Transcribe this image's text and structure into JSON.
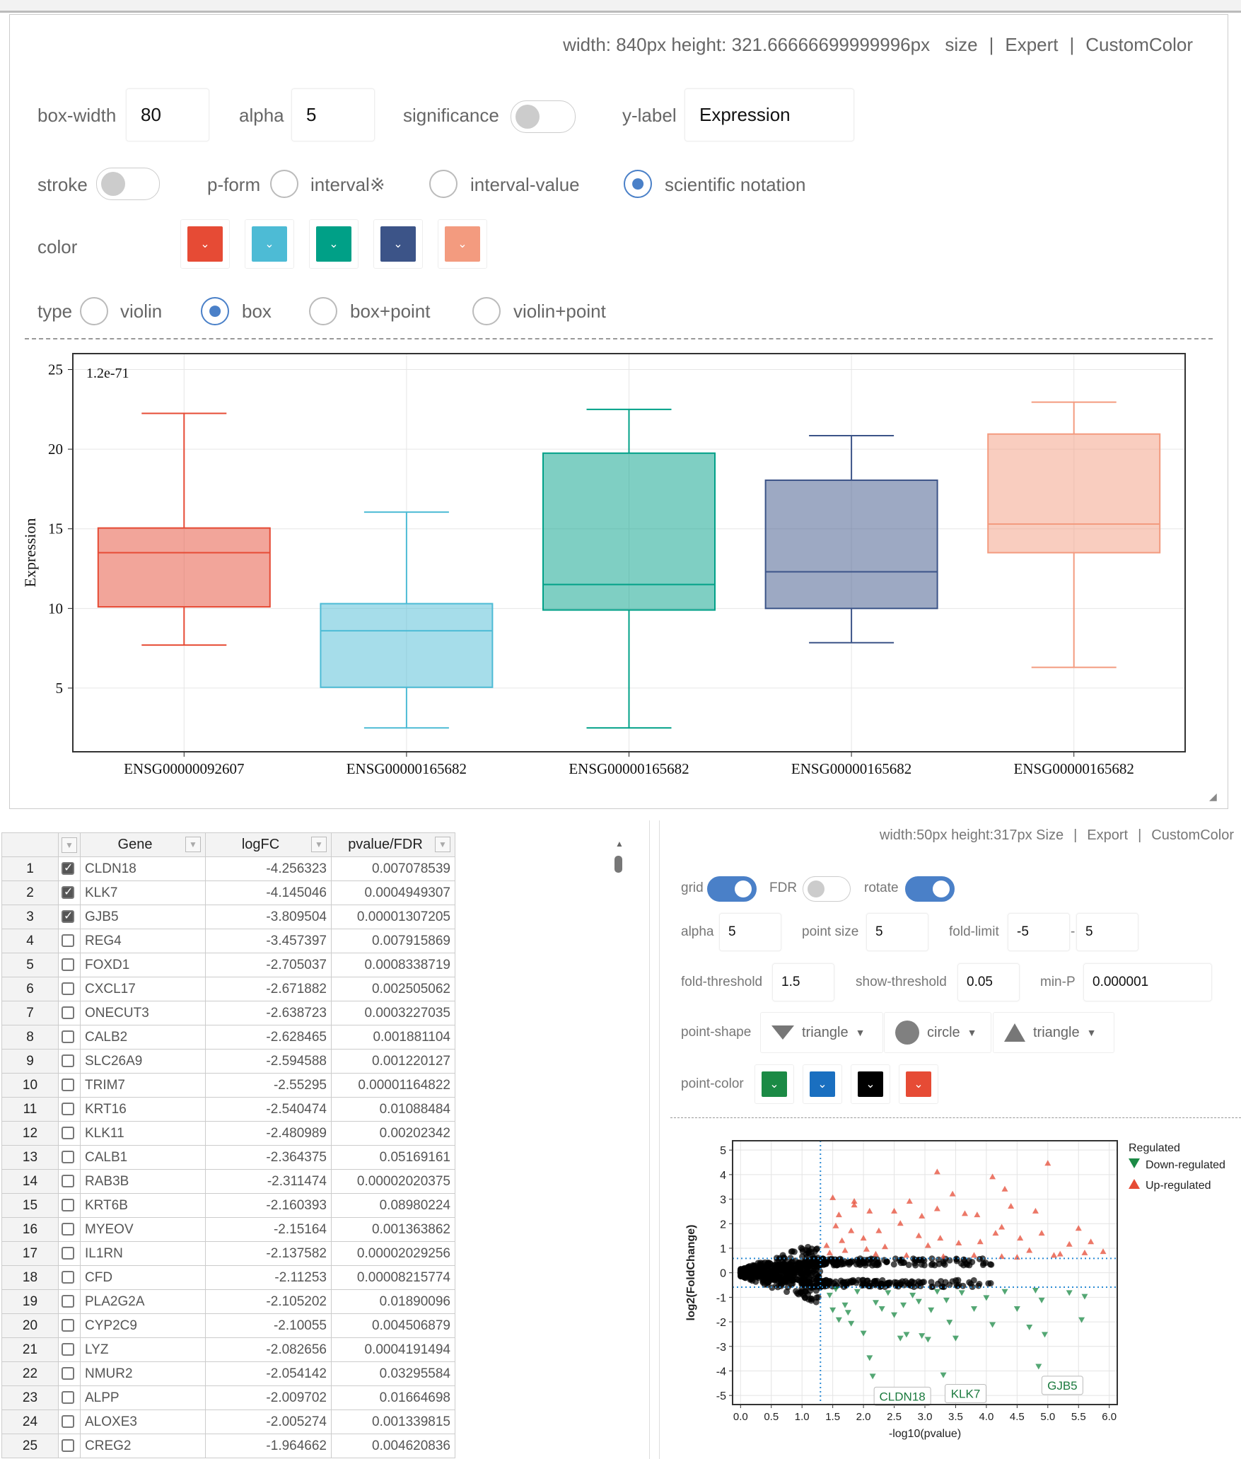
{
  "box_panel": {
    "size_text": "width: 840px height: 321.66666699999996px",
    "links": [
      "size",
      "Expert",
      "CustomColor"
    ],
    "box_width": {
      "label": "box-width",
      "value": "80"
    },
    "alpha": {
      "label": "alpha",
      "value": "5"
    },
    "significance": {
      "label": "significance",
      "on": false
    },
    "y_label": {
      "label": "y-label",
      "value": "Expression"
    },
    "stroke": {
      "label": "stroke",
      "on": false
    },
    "p_form": {
      "label": "p-form",
      "options": [
        "interval※",
        "interval-value",
        "scientific notation"
      ],
      "selected": "scientific notation"
    },
    "color": {
      "label": "color",
      "colors": [
        "#e64b35",
        "#4dbbd5",
        "#00a087",
        "#3c5488",
        "#f39b7f"
      ]
    },
    "type": {
      "label": "type",
      "options": [
        "violin",
        "box",
        "box+point",
        "violin+point"
      ],
      "selected": "box"
    }
  },
  "table": {
    "headers": [
      "Gene",
      "logFC",
      "pvalue/FDR"
    ],
    "rows": [
      {
        "n": "1",
        "checked": true,
        "gene": "CLDN18",
        "logfc": "-4.256323",
        "p": "0.007078539"
      },
      {
        "n": "2",
        "checked": true,
        "gene": "KLK7",
        "logfc": "-4.145046",
        "p": "0.0004949307"
      },
      {
        "n": "3",
        "checked": true,
        "gene": "GJB5",
        "logfc": "-3.809504",
        "p": "0.00001307205"
      },
      {
        "n": "4",
        "checked": false,
        "gene": "REG4",
        "logfc": "-3.457397",
        "p": "0.007915869"
      },
      {
        "n": "5",
        "checked": false,
        "gene": "FOXD1",
        "logfc": "-2.705037",
        "p": "0.0008338719"
      },
      {
        "n": "6",
        "checked": false,
        "gene": "CXCL17",
        "logfc": "-2.671882",
        "p": "0.002505062"
      },
      {
        "n": "7",
        "checked": false,
        "gene": "ONECUT3",
        "logfc": "-2.638723",
        "p": "0.0003227035"
      },
      {
        "n": "8",
        "checked": false,
        "gene": "CALB2",
        "logfc": "-2.628465",
        "p": "0.001881104"
      },
      {
        "n": "9",
        "checked": false,
        "gene": "SLC26A9",
        "logfc": "-2.594588",
        "p": "0.001220127"
      },
      {
        "n": "10",
        "checked": false,
        "gene": "TRIM7",
        "logfc": "-2.55295",
        "p": "0.00001164822"
      },
      {
        "n": "11",
        "checked": false,
        "gene": "KRT16",
        "logfc": "-2.540474",
        "p": "0.01088484"
      },
      {
        "n": "12",
        "checked": false,
        "gene": "KLK11",
        "logfc": "-2.480989",
        "p": "0.00202342"
      },
      {
        "n": "13",
        "checked": false,
        "gene": "CALB1",
        "logfc": "-2.364375",
        "p": "0.05169161"
      },
      {
        "n": "14",
        "checked": false,
        "gene": "RAB3B",
        "logfc": "-2.311474",
        "p": "0.00002020375"
      },
      {
        "n": "15",
        "checked": false,
        "gene": "KRT6B",
        "logfc": "-2.160393",
        "p": "0.08980224"
      },
      {
        "n": "16",
        "checked": false,
        "gene": "MYEOV",
        "logfc": "-2.15164",
        "p": "0.001363862"
      },
      {
        "n": "17",
        "checked": false,
        "gene": "IL1RN",
        "logfc": "-2.137582",
        "p": "0.00002029256"
      },
      {
        "n": "18",
        "checked": false,
        "gene": "CFD",
        "logfc": "-2.11253",
        "p": "0.00008215774"
      },
      {
        "n": "19",
        "checked": false,
        "gene": "PLA2G2A",
        "logfc": "-2.105202",
        "p": "0.01890096"
      },
      {
        "n": "20",
        "checked": false,
        "gene": "CYP2C9",
        "logfc": "-2.10055",
        "p": "0.004506879"
      },
      {
        "n": "21",
        "checked": false,
        "gene": "LYZ",
        "logfc": "-2.082656",
        "p": "0.0004191494"
      },
      {
        "n": "22",
        "checked": false,
        "gene": "NMUR2",
        "logfc": "-2.054142",
        "p": "0.03295584"
      },
      {
        "n": "23",
        "checked": false,
        "gene": "ALPP",
        "logfc": "-2.009702",
        "p": "0.01664698"
      },
      {
        "n": "24",
        "checked": false,
        "gene": "ALOXE3",
        "logfc": "-2.005274",
        "p": "0.001339815"
      },
      {
        "n": "25",
        "checked": false,
        "gene": "CREG2",
        "logfc": "-1.964662",
        "p": "0.004620836"
      }
    ]
  },
  "volcano_panel": {
    "size_text": "width:50px height:317px",
    "links": [
      "Size",
      "Export",
      "CustomColor"
    ],
    "grid": {
      "label": "grid",
      "on": true
    },
    "fdr": {
      "label": "FDR",
      "on": false
    },
    "rotate": {
      "label": "rotate",
      "on": true
    },
    "alpha": {
      "label": "alpha",
      "value": "5"
    },
    "point_size": {
      "label": "point size",
      "value": "5"
    },
    "fold_limit": {
      "label": "fold-limit",
      "min": "-5",
      "sep": "-",
      "max": "5"
    },
    "fold_threshold": {
      "label": "fold-threshold",
      "value": "1.5"
    },
    "show_threshold": {
      "label": "show-threshold",
      "value": "0.05"
    },
    "min_p": {
      "label": "min-P",
      "value": "0.000001"
    },
    "point_shape": {
      "label": "point-shape",
      "options": [
        {
          "icon": "triangle-down-icon",
          "text": "triangle"
        },
        {
          "icon": "circle-icon",
          "text": "circle"
        },
        {
          "icon": "triangle-up-icon",
          "text": "triangle"
        }
      ]
    },
    "point_color": {
      "label": "point-color",
      "colors": [
        "#1b8a45",
        "#1a6fc0",
        "#000000",
        "#e64b35"
      ]
    }
  },
  "chart_data": [
    {
      "type": "box",
      "ylabel": "Expression",
      "ylim": [
        1,
        26
      ],
      "yticks": [
        5,
        10,
        15,
        20,
        25
      ],
      "annotation": "1.2e-71",
      "grid": true,
      "categories": [
        "ENSG00000092607",
        "ENSG00000165682",
        "ENSG00000165682",
        "ENSG00000165682",
        "ENSG00000165682"
      ],
      "colors": [
        "#e64b35",
        "#4dbbd5",
        "#00a087",
        "#3c5488",
        "#f39b7f"
      ],
      "boxes": [
        {
          "min": 7.7,
          "q1": 10.1,
          "median": 13.5,
          "q3": 15.05,
          "max": 22.25
        },
        {
          "min": 2.5,
          "q1": 5.05,
          "median": 8.6,
          "q3": 10.3,
          "max": 16.05
        },
        {
          "min": 2.5,
          "q1": 9.9,
          "median": 11.5,
          "q3": 19.75,
          "max": 22.5
        },
        {
          "min": 7.85,
          "q1": 10.0,
          "median": 12.3,
          "q3": 18.05,
          "max": 20.85
        },
        {
          "min": 6.3,
          "q1": 13.5,
          "median": 15.3,
          "q3": 20.95,
          "max": 22.95
        }
      ]
    },
    {
      "type": "scatter",
      "xlabel": "-log10(pvalue)",
      "ylabel": "log2(FoldChange)",
      "xlim": [
        -0.13,
        6.13
      ],
      "ylim": [
        -5.37,
        5.38
      ],
      "xticks": [
        "0.0",
        "0.5",
        "1.0",
        "1.5",
        "2.0",
        "2.5",
        "3.0",
        "3.5",
        "4.0",
        "4.5",
        "5.0",
        "5.5",
        "6.0"
      ],
      "yticks": [
        -5,
        -4,
        -3,
        -2,
        -1,
        0,
        1,
        2,
        3,
        4,
        5
      ],
      "grid": true,
      "thresholds": {
        "x": 1.3,
        "y": [
          -0.585,
          0.585
        ]
      },
      "legend": {
        "title": "Regulated",
        "position": "right",
        "entries": [
          {
            "name": "Down-regulated",
            "color": "#1b8a45",
            "shape": "triangle-down"
          },
          {
            "name": "Up-regulated",
            "color": "#e64b35",
            "shape": "triangle-up"
          }
        ]
      },
      "series": [
        {
          "name": "Up-regulated",
          "color": "#e64b35",
          "points": [
            [
              1.5,
              3.05
            ],
            [
              1.85,
              2.9
            ],
            [
              1.85,
              2.75
            ],
            [
              2.1,
              2.5
            ],
            [
              2.5,
              2.5
            ],
            [
              2.75,
              2.9
            ],
            [
              2.95,
              2.3
            ],
            [
              3.2,
              4.1
            ],
            [
              3.2,
              2.6
            ],
            [
              3.45,
              3.2
            ],
            [
              3.65,
              2.4
            ],
            [
              3.85,
              2.35
            ],
            [
              4.1,
              3.9
            ],
            [
              4.3,
              3.4
            ],
            [
              4.4,
              2.7
            ],
            [
              4.8,
              2.5
            ],
            [
              5.0,
              4.45
            ],
            [
              5.5,
              1.8
            ],
            [
              5.7,
              1.25
            ],
            [
              5.9,
              0.85
            ],
            [
              1.6,
              2.35
            ],
            [
              1.55,
              1.9
            ],
            [
              1.8,
              1.7
            ],
            [
              2.0,
              1.4
            ],
            [
              2.25,
              1.7
            ],
            [
              2.6,
              2.0
            ],
            [
              2.9,
              1.5
            ],
            [
              3.05,
              1.1
            ],
            [
              3.25,
              1.4
            ],
            [
              3.55,
              1.2
            ],
            [
              3.9,
              1.25
            ],
            [
              4.15,
              1.6
            ],
            [
              4.25,
              1.85
            ],
            [
              4.55,
              1.4
            ],
            [
              4.7,
              0.9
            ],
            [
              4.9,
              1.6
            ],
            [
              5.35,
              1.15
            ],
            [
              5.2,
              0.75
            ],
            [
              5.6,
              0.8
            ],
            [
              1.4,
              1.1
            ],
            [
              1.45,
              0.8
            ],
            [
              1.7,
              0.9
            ],
            [
              2.2,
              0.75
            ],
            [
              2.7,
              0.7
            ],
            [
              3.3,
              0.65
            ],
            [
              3.8,
              0.7
            ],
            [
              4.25,
              0.65
            ],
            [
              4.5,
              0.62
            ],
            [
              5.1,
              0.7
            ],
            [
              1.65,
              1.3
            ],
            [
              2.35,
              1.05
            ],
            [
              2.05,
              0.95
            ]
          ]
        },
        {
          "name": "Down-regulated",
          "color": "#1b8a45",
          "points": [
            [
              2.1,
              -3.45
            ],
            [
              2.15,
              -4.2
            ],
            [
              3.3,
              -4.15
            ],
            [
              4.85,
              -3.8
            ],
            [
              1.5,
              -1.5
            ],
            [
              1.6,
              -1.9
            ],
            [
              1.8,
              -2.05
            ],
            [
              2.0,
              -2.45
            ],
            [
              2.6,
              -2.65
            ],
            [
              2.7,
              -2.5
            ],
            [
              2.95,
              -2.55
            ],
            [
              3.05,
              -2.7
            ],
            [
              3.5,
              -2.65
            ],
            [
              3.4,
              -2.0
            ],
            [
              4.1,
              -2.1
            ],
            [
              4.7,
              -2.2
            ],
            [
              4.95,
              -2.5
            ],
            [
              5.55,
              -1.9
            ],
            [
              5.6,
              -0.95
            ],
            [
              5.35,
              -0.8
            ],
            [
              4.9,
              -1.1
            ],
            [
              4.5,
              -1.45
            ],
            [
              3.8,
              -1.45
            ],
            [
              3.1,
              -1.5
            ],
            [
              2.5,
              -1.7
            ],
            [
              2.2,
              -1.2
            ],
            [
              1.7,
              -1.3
            ],
            [
              1.45,
              -0.9
            ],
            [
              1.9,
              -0.75
            ],
            [
              2.4,
              -0.8
            ],
            [
              2.8,
              -0.9
            ],
            [
              3.2,
              -0.75
            ],
            [
              3.6,
              -0.8
            ],
            [
              4.0,
              -1.0
            ],
            [
              4.3,
              -0.75
            ],
            [
              4.8,
              -0.7
            ],
            [
              3.35,
              -1.1
            ],
            [
              2.65,
              -1.3
            ],
            [
              1.55,
              -0.65
            ],
            [
              1.75,
              -1.6
            ],
            [
              2.3,
              -1.45
            ],
            [
              2.9,
              -1.15
            ]
          ]
        }
      ],
      "labels": [
        {
          "text": "CLDN18",
          "x": 2.15,
          "y": -4.256
        },
        {
          "text": "KLK7",
          "x": 3.305,
          "y": -4.145
        },
        {
          "text": "GJB5",
          "x": 4.88,
          "y": -3.81
        }
      ]
    }
  ]
}
